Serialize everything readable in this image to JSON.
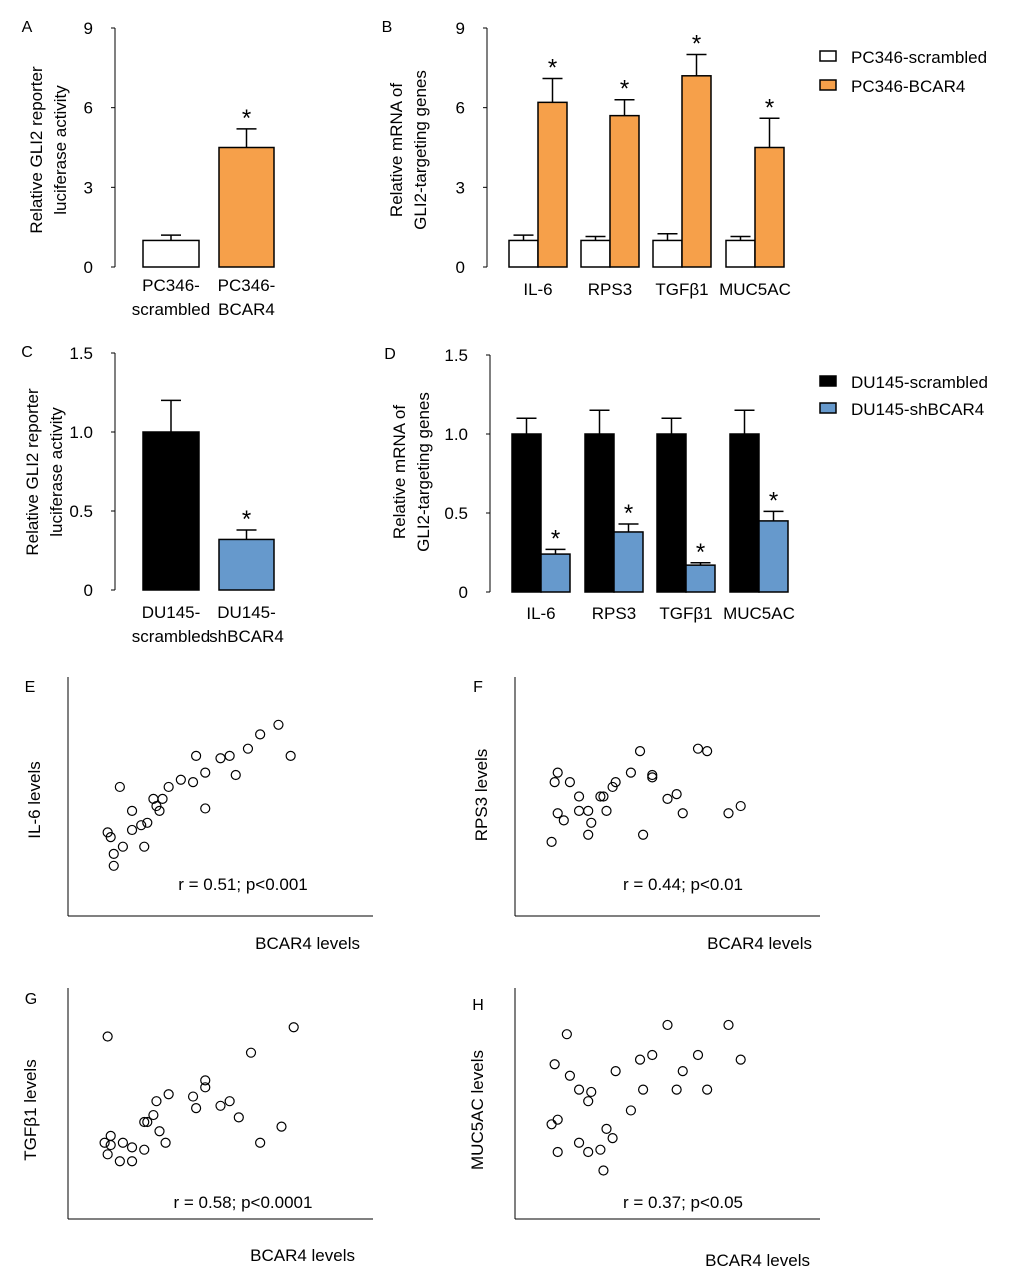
{
  "chart_data": [
    {
      "panel": "A",
      "type": "bar",
      "ylabel": [
        "Relative GLI2 reporter",
        "luciferase activity"
      ],
      "ylim": [
        0,
        9
      ],
      "yticks": [
        "0",
        "3",
        "6",
        "9"
      ],
      "ytick_values": [
        0,
        3,
        6,
        9
      ],
      "categories": [
        [
          "PC346-",
          "scrambled"
        ],
        [
          "PC346-",
          "BCAR4"
        ]
      ],
      "values": [
        1.0,
        4.5
      ],
      "errors": [
        0.2,
        0.7
      ],
      "colors": [
        "#ffffff",
        "#f6a04a"
      ],
      "significance": [
        "",
        "*"
      ]
    },
    {
      "panel": "B",
      "type": "bar",
      "ylabel": [
        "Relative mRNA of",
        "GLI2-targeting genes"
      ],
      "ylim": [
        0,
        9
      ],
      "yticks": [
        "0",
        "3",
        "6",
        "9"
      ],
      "ytick_values": [
        0,
        3,
        6,
        9
      ],
      "categories": [
        "IL-6",
        "RPS3",
        "TGFβ1",
        "MUC5AC"
      ],
      "series": [
        {
          "name": "PC346-scrambled",
          "color": "#ffffff",
          "values": [
            1.0,
            1.0,
            1.0,
            1.0
          ],
          "errors": [
            0.2,
            0.15,
            0.25,
            0.15
          ],
          "significance": [
            "",
            "",
            "",
            ""
          ]
        },
        {
          "name": "PC346-BCAR4",
          "color": "#f6a04a",
          "values": [
            6.2,
            5.7,
            7.2,
            4.5
          ],
          "errors": [
            0.9,
            0.6,
            0.8,
            1.1
          ],
          "significance": [
            "*",
            "*",
            "*",
            "*"
          ]
        }
      ],
      "legend": "right"
    },
    {
      "panel": "C",
      "type": "bar",
      "ylabel": [
        "Relative GLI2 reporter",
        "luciferase activity"
      ],
      "ylim": [
        0,
        1.5
      ],
      "yticks": [
        "0",
        "0.5",
        "1.0",
        "1.5"
      ],
      "ytick_values": [
        0,
        0.5,
        1.0,
        1.5
      ],
      "categories": [
        [
          "DU145-",
          "scrambled"
        ],
        [
          "DU145-",
          "shBCAR4"
        ]
      ],
      "values": [
        1.0,
        0.32
      ],
      "errors": [
        0.2,
        0.06
      ],
      "colors": [
        "#000000",
        "#6699cc"
      ],
      "significance": [
        "",
        "*"
      ]
    },
    {
      "panel": "D",
      "type": "bar",
      "ylabel": [
        "Relative mRNA of",
        "GLI2-targeting genes"
      ],
      "ylim": [
        0,
        1.5
      ],
      "yticks": [
        "0",
        "0.5",
        "1.0",
        "1.5"
      ],
      "ytick_values": [
        0,
        0.5,
        1.0,
        1.5
      ],
      "categories": [
        "IL-6",
        "RPS3",
        "TGFβ1",
        "MUC5AC"
      ],
      "series": [
        {
          "name": "DU145-scrambled",
          "color": "#000000",
          "values": [
            1.0,
            1.0,
            1.0,
            1.0
          ],
          "errors": [
            0.1,
            0.15,
            0.1,
            0.15
          ],
          "significance": [
            "",
            "",
            "",
            ""
          ]
        },
        {
          "name": "DU145-shBCAR4",
          "color": "#6699cc",
          "values": [
            0.24,
            0.38,
            0.17,
            0.45
          ],
          "errors": [
            0.03,
            0.05,
            0.015,
            0.06
          ],
          "significance": [
            "*",
            "*",
            "*",
            "*"
          ]
        }
      ],
      "legend": "right"
    },
    {
      "panel": "E",
      "type": "scatter",
      "xlabel": "BCAR4 levels",
      "ylabel": "IL-6 levels",
      "annotation": "r = 0.51; p<0.001",
      "axis_scale": "unlabeled (relative 0-100)",
      "points": [
        [
          13,
          35
        ],
        [
          14,
          33
        ],
        [
          15,
          26
        ],
        [
          15,
          21
        ],
        [
          17,
          54
        ],
        [
          18,
          29
        ],
        [
          21,
          44
        ],
        [
          21,
          36
        ],
        [
          24,
          38
        ],
        [
          25,
          29
        ],
        [
          26,
          39
        ],
        [
          28,
          49
        ],
        [
          29,
          46
        ],
        [
          30,
          44
        ],
        [
          31,
          49
        ],
        [
          33,
          54
        ],
        [
          37,
          57
        ],
        [
          41,
          56
        ],
        [
          42,
          67
        ],
        [
          45,
          60
        ],
        [
          45,
          45
        ],
        [
          50,
          66
        ],
        [
          53,
          67
        ],
        [
          55,
          59
        ],
        [
          59,
          70
        ],
        [
          63,
          76
        ],
        [
          69,
          80
        ],
        [
          73,
          67
        ]
      ]
    },
    {
      "panel": "F",
      "type": "scatter",
      "xlabel": "BCAR4 levels",
      "ylabel": "RPS3 levels",
      "annotation": "r = 0.44; p<0.01",
      "axis_scale": "unlabeled (relative 0-100)",
      "points": [
        [
          12,
          31
        ],
        [
          13,
          56
        ],
        [
          14,
          60
        ],
        [
          18,
          56
        ],
        [
          14,
          43
        ],
        [
          16,
          40
        ],
        [
          21,
          50
        ],
        [
          21,
          44
        ],
        [
          24,
          44
        ],
        [
          24,
          34
        ],
        [
          25,
          39
        ],
        [
          28,
          50
        ],
        [
          29,
          50
        ],
        [
          30,
          44
        ],
        [
          32,
          54
        ],
        [
          33,
          56
        ],
        [
          38,
          60
        ],
        [
          41,
          69
        ],
        [
          42,
          34
        ],
        [
          45,
          59
        ],
        [
          45,
          58
        ],
        [
          50,
          49
        ],
        [
          53,
          51
        ],
        [
          55,
          43
        ],
        [
          60,
          70
        ],
        [
          63,
          69
        ],
        [
          70,
          43
        ],
        [
          74,
          46
        ]
      ]
    },
    {
      "panel": "G",
      "type": "scatter",
      "xlabel": "BCAR4 levels",
      "ylabel": "TGFβ1 levels",
      "annotation": "r = 0.58; p<0.0001",
      "axis_scale": "unlabeled (relative 0-100)",
      "points": [
        [
          13,
          79
        ],
        [
          12,
          33
        ],
        [
          14,
          36
        ],
        [
          14,
          32
        ],
        [
          13,
          28
        ],
        [
          17,
          25
        ],
        [
          18,
          33
        ],
        [
          21,
          31
        ],
        [
          21,
          25
        ],
        [
          25,
          30
        ],
        [
          25,
          42
        ],
        [
          26,
          42
        ],
        [
          28,
          45
        ],
        [
          29,
          51
        ],
        [
          30,
          38
        ],
        [
          32,
          33
        ],
        [
          33,
          54
        ],
        [
          41,
          53
        ],
        [
          42,
          48
        ],
        [
          45,
          57
        ],
        [
          45,
          60
        ],
        [
          50,
          49
        ],
        [
          53,
          51
        ],
        [
          56,
          44
        ],
        [
          60,
          72
        ],
        [
          63,
          33
        ],
        [
          70,
          40
        ],
        [
          74,
          83
        ]
      ]
    },
    {
      "panel": "H",
      "type": "scatter",
      "xlabel": "BCAR4 levels",
      "ylabel": "MUC5AC levels",
      "annotation": "r = 0.37; p<0.05",
      "axis_scale": "unlabeled (relative 0-100)",
      "points": [
        [
          17,
          80
        ],
        [
          13,
          67
        ],
        [
          18,
          62
        ],
        [
          21,
          56
        ],
        [
          25,
          55
        ],
        [
          24,
          51
        ],
        [
          12,
          41
        ],
        [
          14,
          43
        ],
        [
          14,
          29
        ],
        [
          21,
          33
        ],
        [
          24,
          29
        ],
        [
          28,
          30
        ],
        [
          29,
          21
        ],
        [
          30,
          39
        ],
        [
          32,
          35
        ],
        [
          33,
          64
        ],
        [
          38,
          47
        ],
        [
          41,
          69
        ],
        [
          42,
          56
        ],
        [
          45,
          71
        ],
        [
          50,
          84
        ],
        [
          53,
          56
        ],
        [
          55,
          64
        ],
        [
          60,
          71
        ],
        [
          63,
          56
        ],
        [
          70,
          84
        ],
        [
          74,
          69
        ]
      ]
    }
  ]
}
